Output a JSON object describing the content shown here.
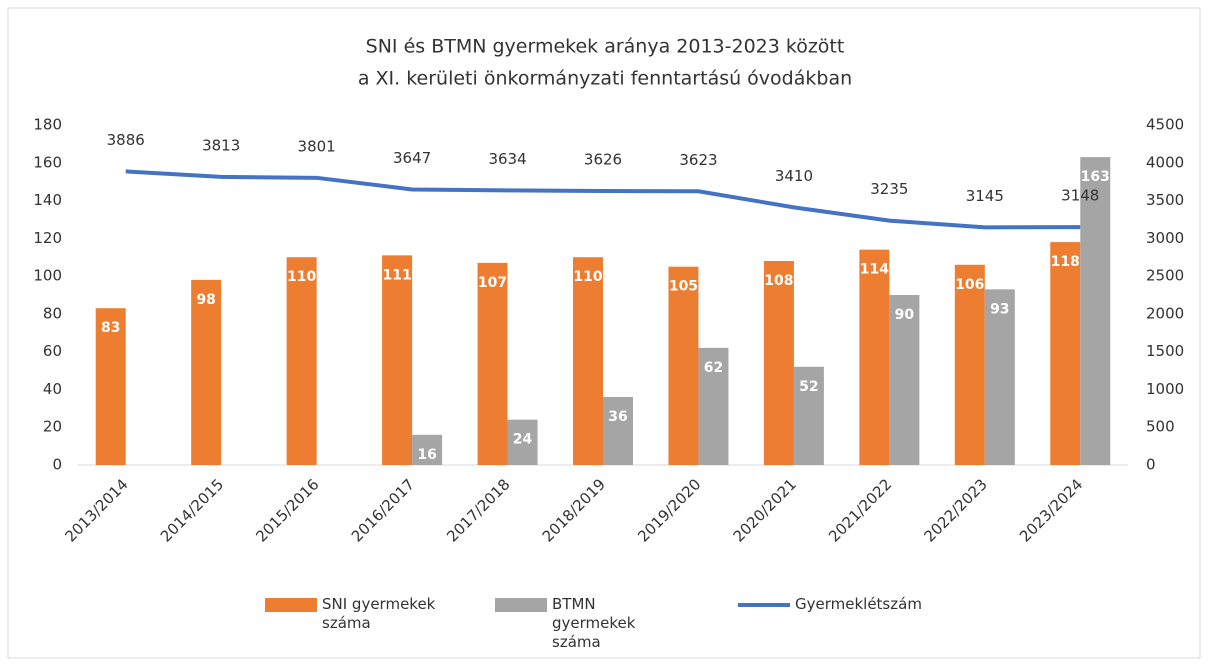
{
  "chart_data": {
    "type": "bar_line",
    "title": "SNI és BTMN gyermekek aránya 2013-2023 között",
    "subtitle": "a XI. kerületi önkormányzati fenntartású óvodákban",
    "categories": [
      "2013/2014",
      "2014/2015",
      "2015/2016",
      "2016/2017",
      "2017/2018",
      "2018/2019",
      "2019/2020",
      "2020/2021",
      "2021/2022",
      "2022/2023",
      "2023/2024"
    ],
    "series": [
      {
        "name": "SNI gyermekek száma",
        "type": "bar",
        "color": "#ed7d31",
        "values": [
          83,
          98,
          110,
          111,
          107,
          110,
          105,
          108,
          114,
          106,
          118
        ]
      },
      {
        "name": "BTMN gyermekek száma",
        "type": "bar",
        "color": "#a5a5a5",
        "values": [
          null,
          null,
          null,
          16,
          24,
          36,
          62,
          52,
          90,
          93,
          163
        ]
      },
      {
        "name": "Gyermeklétszám",
        "type": "line",
        "axis": "y2",
        "color": "#4472c4",
        "values": [
          3886,
          3813,
          3801,
          3647,
          3634,
          3626,
          3623,
          3410,
          3235,
          3145,
          3148
        ]
      }
    ],
    "ylim": [
      0,
      180
    ],
    "yticks": [
      0,
      20,
      40,
      60,
      80,
      100,
      120,
      140,
      160,
      180
    ],
    "y2lim": [
      0,
      4500
    ],
    "y2ticks": [
      0,
      500,
      1000,
      1500,
      2000,
      2500,
      3000,
      3500,
      4000,
      4500
    ],
    "grid": false,
    "legend": "bottom"
  }
}
